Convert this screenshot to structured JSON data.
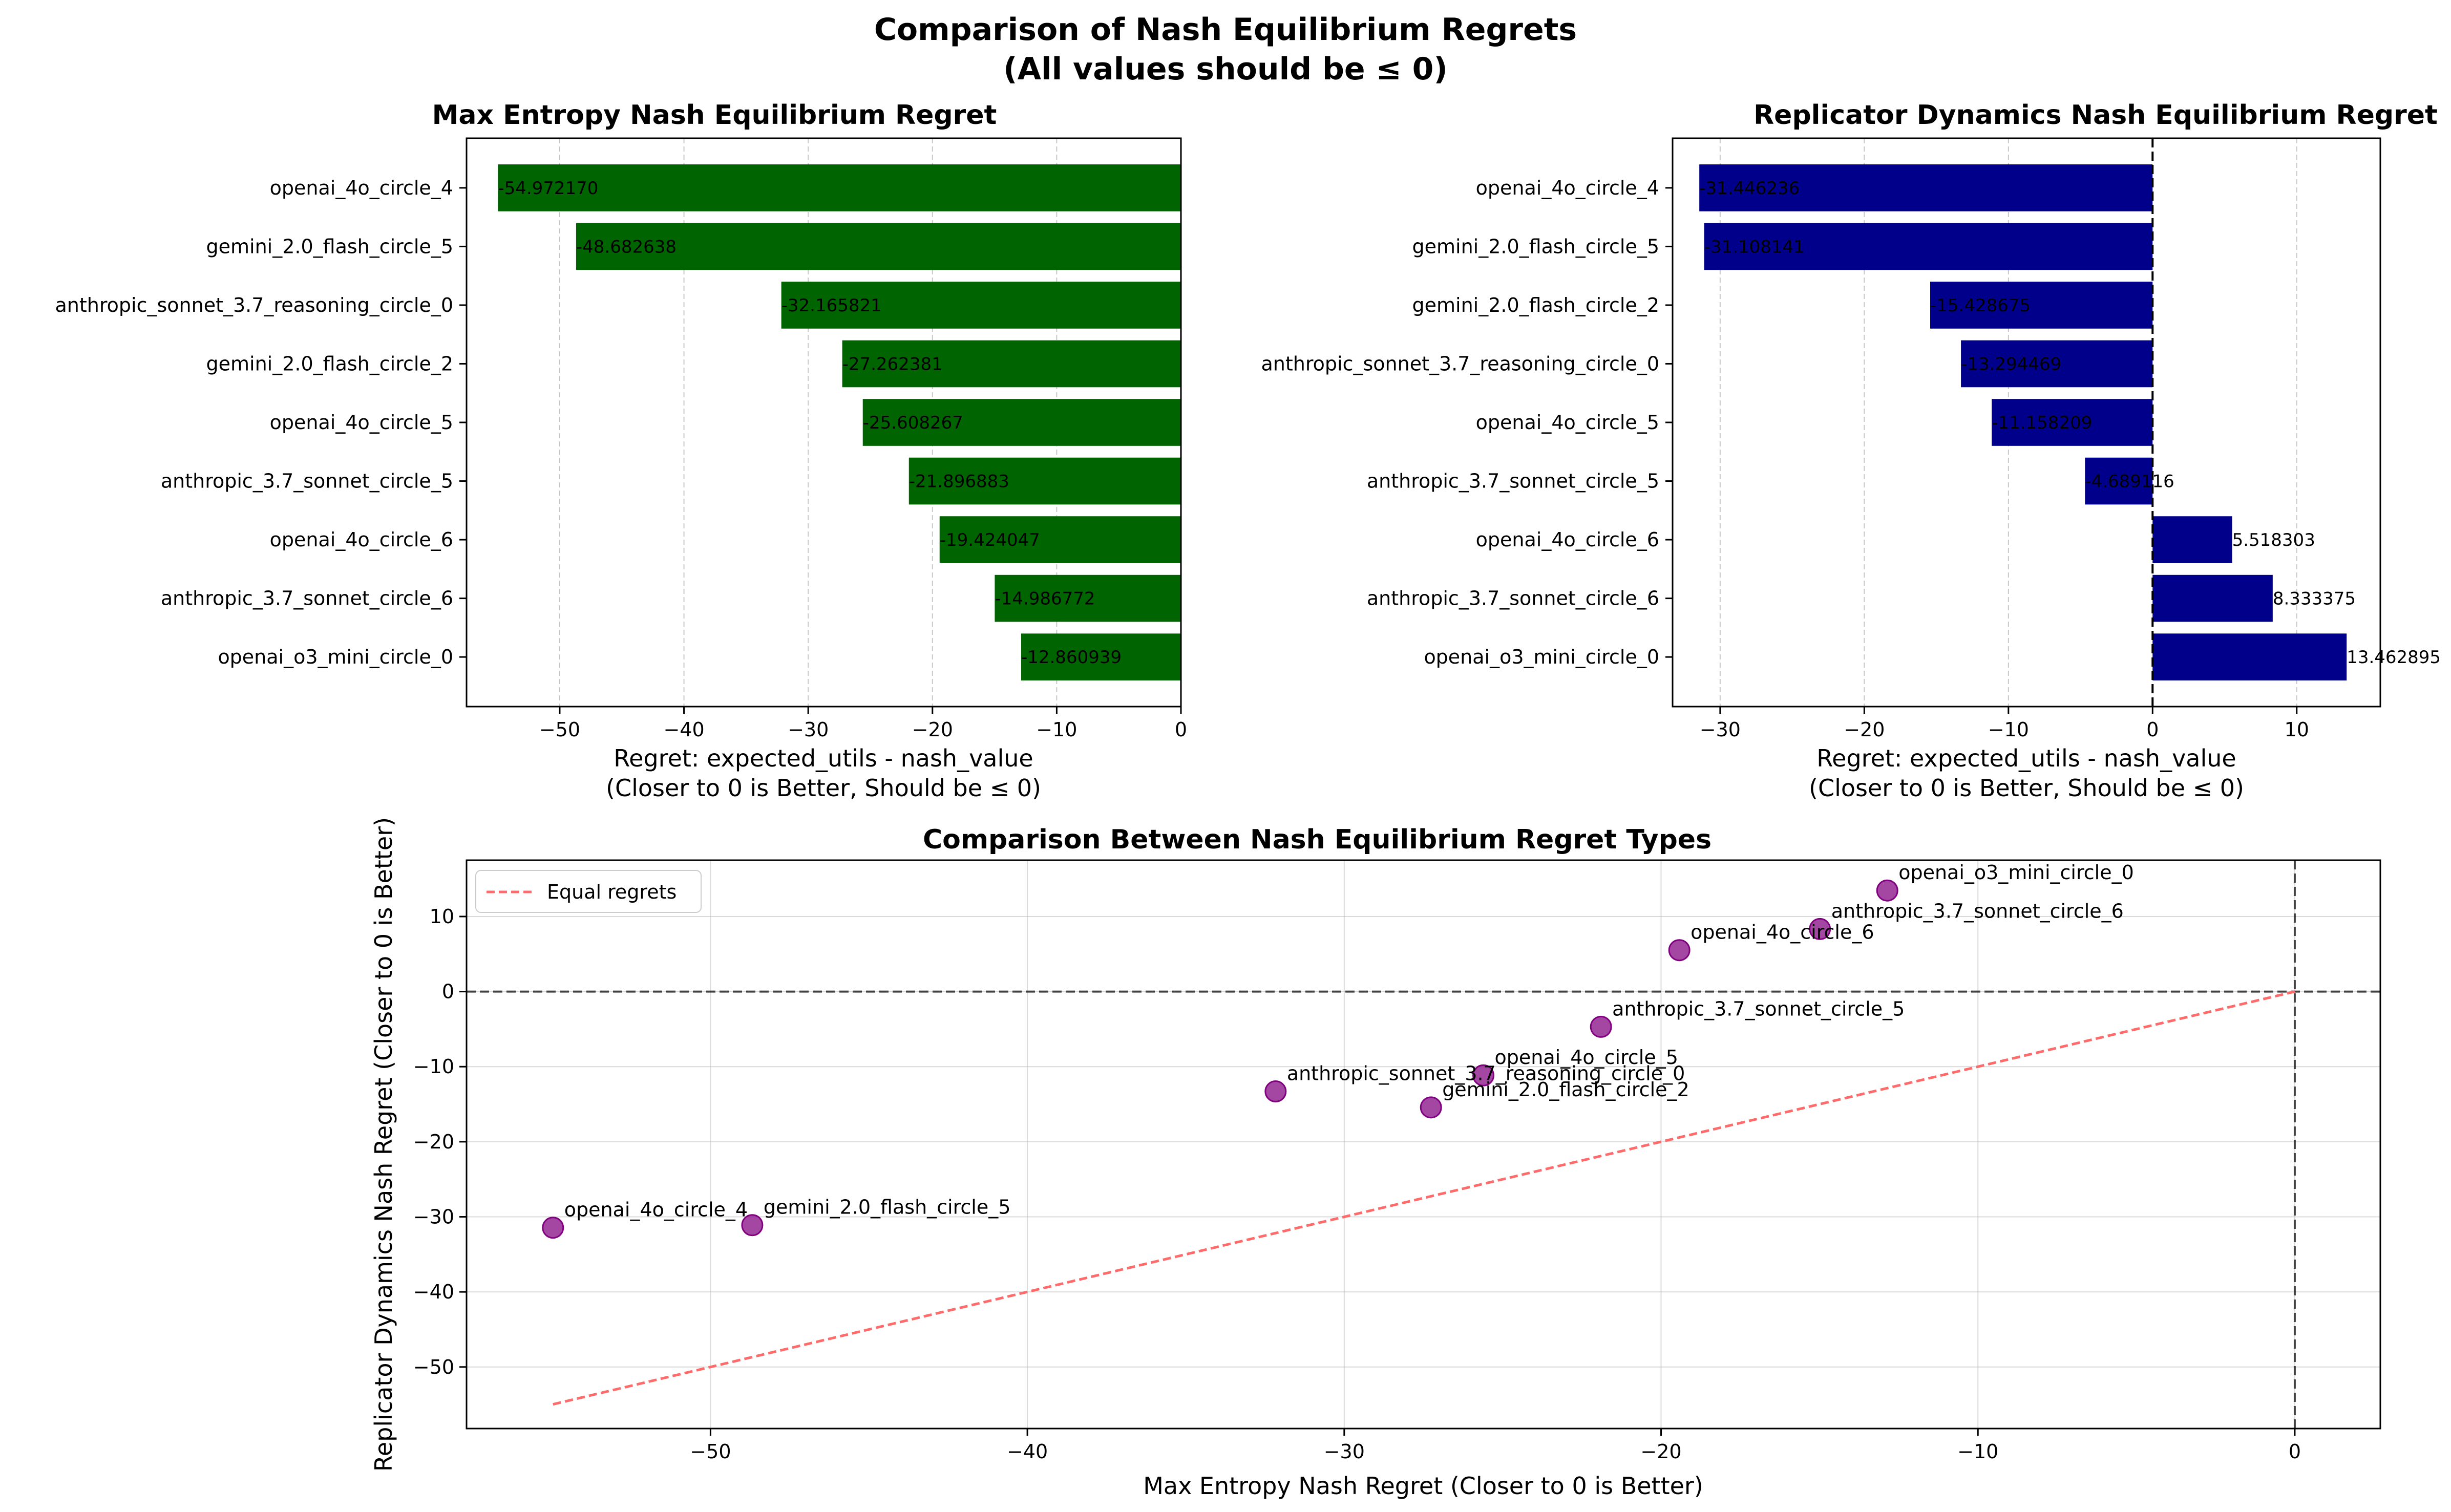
{
  "figure": {
    "title_line1": "Comparison of Nash Equilibrium Regrets",
    "title_line2": "(All values should be ≤ 0)"
  },
  "colors": {
    "max_entropy_bar": "#006400",
    "replicator_bar": "#00008b",
    "scatter_point": "#800080",
    "equal_line": "#ff6b6b",
    "grid": "#b0b0b0"
  },
  "chart_data": [
    {
      "type": "bar",
      "orientation": "horizontal",
      "title": "Max Entropy Nash Equilibrium Regret",
      "xlabel_line1": "Regret: expected_utils - nash_value",
      "xlabel_line2": "(Closer to 0 is Better, Should be ≤ 0)",
      "xlim": [
        -57.5,
        0
      ],
      "xticks": [
        -50,
        -40,
        -30,
        -20,
        -10,
        0
      ],
      "xtick_labels": [
        "−50",
        "−40",
        "−30",
        "−20",
        "−10",
        "0"
      ],
      "grid": "x-dashed",
      "categories": [
        "openai_4o_circle_4",
        "gemini_2.0_flash_circle_5",
        "anthropic_sonnet_3.7_reasoning_circle_0",
        "gemini_2.0_flash_circle_2",
        "openai_4o_circle_5",
        "anthropic_3.7_sonnet_circle_5",
        "openai_4o_circle_6",
        "anthropic_3.7_sonnet_circle_6",
        "openai_o3_mini_circle_0"
      ],
      "values": [
        -54.97217,
        -48.682638,
        -32.165821,
        -27.262381,
        -25.608267,
        -21.896883,
        -19.424047,
        -14.986772,
        -12.860939
      ],
      "value_labels": [
        "-54.972170",
        "-48.682638",
        "-32.165821",
        "-27.262381",
        "-25.608267",
        "-21.896883",
        "-19.424047",
        "-14.986772",
        "-12.860939"
      ]
    },
    {
      "type": "bar",
      "orientation": "horizontal",
      "title": "Replicator Dynamics Nash Equilibrium Regret",
      "xlabel_line1": "Regret: expected_utils - nash_value",
      "xlabel_line2": "(Closer to 0 is Better, Should be ≤ 0)",
      "xlim": [
        -33.3,
        15.8
      ],
      "xticks": [
        -30,
        -20,
        -10,
        0,
        10
      ],
      "xtick_labels": [
        "−30",
        "−20",
        "−10",
        "0",
        "10"
      ],
      "grid": "x-dashed",
      "zero_line": true,
      "categories": [
        "openai_4o_circle_4",
        "gemini_2.0_flash_circle_5",
        "gemini_2.0_flash_circle_2",
        "anthropic_sonnet_3.7_reasoning_circle_0",
        "openai_4o_circle_5",
        "anthropic_3.7_sonnet_circle_5",
        "openai_4o_circle_6",
        "anthropic_3.7_sonnet_circle_6",
        "openai_o3_mini_circle_0"
      ],
      "values": [
        -31.446236,
        -31.108141,
        -15.428675,
        -13.294469,
        -11.158209,
        -4.689116,
        5.518303,
        8.333375,
        13.462895
      ],
      "value_labels": [
        "-31.446236",
        "-31.108141",
        "-15.428675",
        "-13.294469",
        "-11.158209",
        "-4.689116",
        "5.518303",
        "8.333375",
        "13.462895"
      ]
    },
    {
      "type": "scatter",
      "title": "Comparison Between Nash Equilibrium Regret Types",
      "xlabel": "Max Entropy Nash Regret (Closer to 0 is Better)",
      "ylabel": "Replicator Dynamics Nash Regret (Closer to 0 is Better)",
      "xlim": [
        -57.7,
        2.7
      ],
      "ylim": [
        -58.2,
        17.5
      ],
      "xticks": [
        -50,
        -40,
        -30,
        -20,
        -10,
        0
      ],
      "xtick_labels": [
        "−50",
        "−40",
        "−30",
        "−20",
        "−10",
        "0"
      ],
      "yticks": [
        -50,
        -40,
        -30,
        -20,
        -10,
        0,
        10
      ],
      "ytick_labels": [
        "−50",
        "−40",
        "−30",
        "−20",
        "−10",
        "0",
        "10"
      ],
      "grid": true,
      "legend": {
        "position": "top-left",
        "label": "Equal regrets"
      },
      "equal_line": {
        "x": [
          -54.97217,
          0
        ],
        "y": [
          -54.97217,
          0
        ]
      },
      "points": [
        {
          "label": "openai_4o_circle_4",
          "x": -54.97217,
          "y": -31.446236
        },
        {
          "label": "gemini_2.0_flash_circle_5",
          "x": -48.682638,
          "y": -31.108141
        },
        {
          "label": "anthropic_sonnet_3.7_reasoning_circle_0",
          "x": -32.165821,
          "y": -13.294469
        },
        {
          "label": "gemini_2.0_flash_circle_2",
          "x": -27.262381,
          "y": -15.428675
        },
        {
          "label": "openai_4o_circle_5",
          "x": -25.608267,
          "y": -11.158209
        },
        {
          "label": "anthropic_3.7_sonnet_circle_5",
          "x": -21.896883,
          "y": -4.689116
        },
        {
          "label": "openai_4o_circle_6",
          "x": -19.424047,
          "y": 5.518303
        },
        {
          "label": "anthropic_3.7_sonnet_circle_6",
          "x": -14.986772,
          "y": 8.333375
        },
        {
          "label": "openai_o3_mini_circle_0",
          "x": -12.860939,
          "y": 13.462895
        }
      ]
    }
  ]
}
